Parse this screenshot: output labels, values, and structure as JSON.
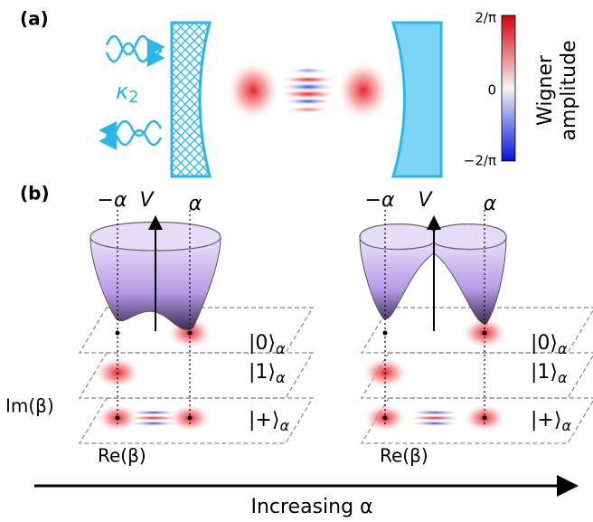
{
  "panel_a": {
    "label": "(a)",
    "loss_rate": {
      "symbol": "κ",
      "sub": "2"
    },
    "colorbar": {
      "ticks": [
        "2/π",
        "0",
        "−2/π"
      ],
      "label": [
        "Wigner",
        "amplitude"
      ]
    }
  },
  "panel_b": {
    "label": "(b)",
    "y_axis": "Im(β)",
    "arrow_label": "Increasing α",
    "panels": [
      {
        "left": "−α",
        "potential": "V",
        "right": "α",
        "x_axis": "Re(β)",
        "states": [
          {
            "ket": "|0⟩",
            "sub": "α"
          },
          {
            "ket": "|1⟩",
            "sub": "α"
          },
          {
            "ket": "|+⟩",
            "sub": "α"
          }
        ]
      },
      {
        "left": "−α",
        "potential": "V",
        "right": "α",
        "x_axis": "Re(β)",
        "states": [
          {
            "ket": "|0⟩",
            "sub": "α"
          },
          {
            "ket": "|1⟩",
            "sub": "α"
          },
          {
            "ket": "|+⟩",
            "sub": "α"
          }
        ]
      }
    ]
  }
}
